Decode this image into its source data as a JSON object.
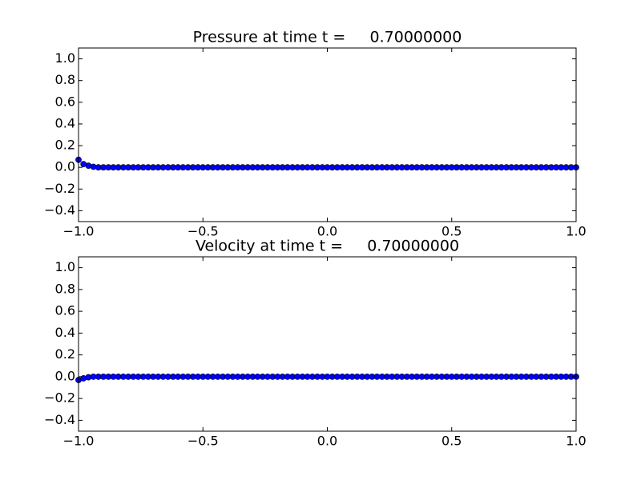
{
  "chart_data": [
    {
      "type": "scatter",
      "title": "Pressure at time t =     0.70000000",
      "color": "#0000ff",
      "x": [
        -1,
        -0.98,
        -0.96,
        -0.94,
        -0.92,
        -0.9,
        -0.88,
        -0.86,
        -0.84,
        -0.82,
        -0.8,
        -0.78,
        -0.76,
        -0.74,
        -0.72,
        -0.7,
        -0.68,
        -0.66,
        -0.64,
        -0.62,
        -0.6,
        -0.58,
        -0.56,
        -0.54,
        -0.52,
        -0.5,
        -0.48,
        -0.46,
        -0.44,
        -0.42,
        -0.4,
        -0.38,
        -0.36,
        -0.34,
        -0.32,
        -0.3,
        -0.28,
        -0.26,
        -0.24,
        -0.22,
        -0.2,
        -0.18,
        -0.16,
        -0.14,
        -0.12,
        -0.1,
        -0.08,
        -0.06,
        -0.04,
        -0.02,
        0,
        0.02,
        0.04,
        0.06,
        0.08,
        0.1,
        0.12,
        0.14,
        0.16,
        0.18,
        0.2,
        0.22,
        0.24,
        0.26,
        0.28,
        0.3,
        0.32,
        0.34,
        0.36,
        0.38,
        0.4,
        0.42,
        0.44,
        0.46,
        0.48,
        0.5,
        0.52,
        0.54,
        0.56,
        0.58,
        0.6,
        0.62,
        0.64,
        0.66,
        0.68,
        0.7,
        0.72,
        0.74,
        0.76,
        0.78,
        0.8,
        0.82,
        0.84,
        0.86,
        0.88,
        0.9,
        0.92,
        0.94,
        0.96,
        0.98,
        1
      ],
      "values": [
        0.07,
        0.03,
        0.015,
        0.005,
        0,
        0,
        0,
        0,
        0,
        0,
        0,
        0,
        0,
        0,
        0,
        0,
        0,
        0,
        0,
        0,
        0,
        0,
        0,
        0,
        0,
        0,
        0,
        0,
        0,
        0,
        0,
        0,
        0,
        0,
        0,
        0,
        0,
        0,
        0,
        0,
        0,
        0,
        0,
        0,
        0,
        0,
        0,
        0,
        0,
        0,
        0,
        0,
        0,
        0,
        0,
        0,
        0,
        0,
        0,
        0,
        0,
        0,
        0,
        0,
        0,
        0,
        0,
        0,
        0,
        0,
        0,
        0,
        0,
        0,
        0,
        0,
        0,
        0,
        0,
        0,
        0,
        0,
        0,
        0,
        0,
        0,
        0,
        0,
        0,
        0,
        0,
        0,
        0,
        0,
        0,
        0,
        0,
        0,
        0,
        0,
        0
      ],
      "xlim": [
        -1,
        1
      ],
      "xticks": [
        {
          "value": -1,
          "label": "−1.0"
        },
        {
          "value": -0.5,
          "label": "−0.5"
        },
        {
          "value": 0,
          "label": "0.0"
        },
        0.5,
        {
          "value": 1,
          "label": "1.0"
        }
      ],
      "ylim": [
        -0.5,
        1.1
      ],
      "yticks": [
        {
          "value": -0.4,
          "label": "−0.4"
        },
        {
          "value": -0.2,
          "label": "−0.2"
        },
        {
          "value": 0,
          "label": "0.0"
        },
        0.2,
        0.4,
        0.6,
        0.8,
        {
          "value": 1,
          "label": "1.0"
        }
      ]
    },
    {
      "type": "scatter",
      "title": "Velocity at time t =     0.70000000",
      "color": "#0000ff",
      "x": [
        -1,
        -0.98,
        -0.96,
        -0.94,
        -0.92,
        -0.9,
        -0.88,
        -0.86,
        -0.84,
        -0.82,
        -0.8,
        -0.78,
        -0.76,
        -0.74,
        -0.72,
        -0.7,
        -0.68,
        -0.66,
        -0.64,
        -0.62,
        -0.6,
        -0.58,
        -0.56,
        -0.54,
        -0.52,
        -0.5,
        -0.48,
        -0.46,
        -0.44,
        -0.42,
        -0.4,
        -0.38,
        -0.36,
        -0.34,
        -0.32,
        -0.3,
        -0.28,
        -0.26,
        -0.24,
        -0.22,
        -0.2,
        -0.18,
        -0.16,
        -0.14,
        -0.12,
        -0.1,
        -0.08,
        -0.06,
        -0.04,
        -0.02,
        0,
        0.02,
        0.04,
        0.06,
        0.08,
        0.1,
        0.12,
        0.14,
        0.16,
        0.18,
        0.2,
        0.22,
        0.24,
        0.26,
        0.28,
        0.3,
        0.32,
        0.34,
        0.36,
        0.38,
        0.4,
        0.42,
        0.44,
        0.46,
        0.48,
        0.5,
        0.52,
        0.54,
        0.56,
        0.58,
        0.6,
        0.62,
        0.64,
        0.66,
        0.68,
        0.7,
        0.72,
        0.74,
        0.76,
        0.78,
        0.8,
        0.82,
        0.84,
        0.86,
        0.88,
        0.9,
        0.92,
        0.94,
        0.96,
        0.98,
        1
      ],
      "values": [
        -0.03,
        -0.015,
        -0.005,
        0,
        0,
        0,
        0,
        0,
        0,
        0,
        0,
        0,
        0,
        0,
        0,
        0,
        0,
        0,
        0,
        0,
        0,
        0,
        0,
        0,
        0,
        0,
        0,
        0,
        0,
        0,
        0,
        0,
        0,
        0,
        0,
        0,
        0,
        0,
        0,
        0,
        0,
        0,
        0,
        0,
        0,
        0,
        0,
        0,
        0,
        0,
        0,
        0,
        0,
        0,
        0,
        0,
        0,
        0,
        0,
        0,
        0,
        0,
        0,
        0,
        0,
        0,
        0,
        0,
        0,
        0,
        0,
        0,
        0,
        0,
        0,
        0,
        0,
        0,
        0,
        0,
        0,
        0,
        0,
        0,
        0,
        0,
        0,
        0,
        0,
        0,
        0,
        0,
        0,
        0,
        0,
        0,
        0,
        0,
        0,
        0,
        0
      ],
      "xlim": [
        -1,
        1
      ],
      "xticks": [
        {
          "value": -1,
          "label": "−1.0"
        },
        {
          "value": -0.5,
          "label": "−0.5"
        },
        {
          "value": 0,
          "label": "0.0"
        },
        0.5,
        {
          "value": 1,
          "label": "1.0"
        }
      ],
      "ylim": [
        -0.5,
        1.1
      ],
      "yticks": [
        {
          "value": -0.4,
          "label": "−0.4"
        },
        {
          "value": -0.2,
          "label": "−0.2"
        },
        {
          "value": 0,
          "label": "0.0"
        },
        0.2,
        0.4,
        0.6,
        0.8,
        {
          "value": 1,
          "label": "1.0"
        }
      ]
    }
  ]
}
